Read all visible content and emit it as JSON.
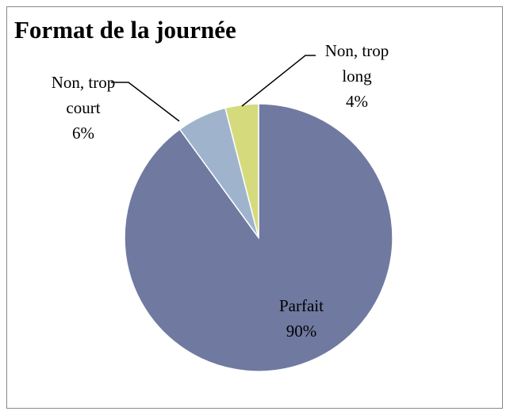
{
  "chart_data": {
    "type": "pie",
    "title": "Format de la journée",
    "categories": [
      "Parfait",
      "Non, trop court",
      "Non, trop long"
    ],
    "values": [
      90,
      6,
      4
    ],
    "value_labels": [
      "90%",
      "6%",
      "4%"
    ],
    "colors": [
      "#7079a0",
      "#9fb4cc",
      "#d5db7c"
    ]
  }
}
